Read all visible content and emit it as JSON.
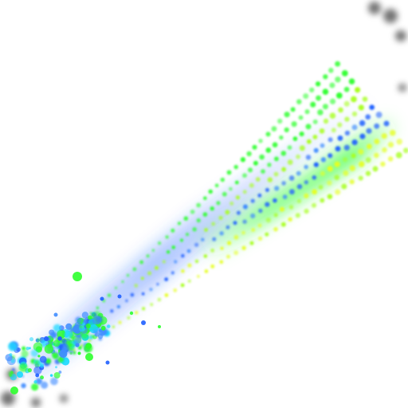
{
  "scene": {
    "description_visible_text": "",
    "palette": {
      "background": "#ffffff",
      "blue": "#1f5fff",
      "blue_light": "#3f8cff",
      "green": "#2cff2c",
      "lime": "#a8ff1f",
      "yellow": "#e6ff1f",
      "cyan": "#19d9ff",
      "shadow": "#000000"
    },
    "elements": {
      "particle_stream": "particle-stream",
      "green_glow_band": "green-glow-band",
      "blue_glow_band": "blue-glow-band",
      "burst_cluster": "burst-cluster",
      "corner_shadows": "corner-shadows"
    }
  }
}
